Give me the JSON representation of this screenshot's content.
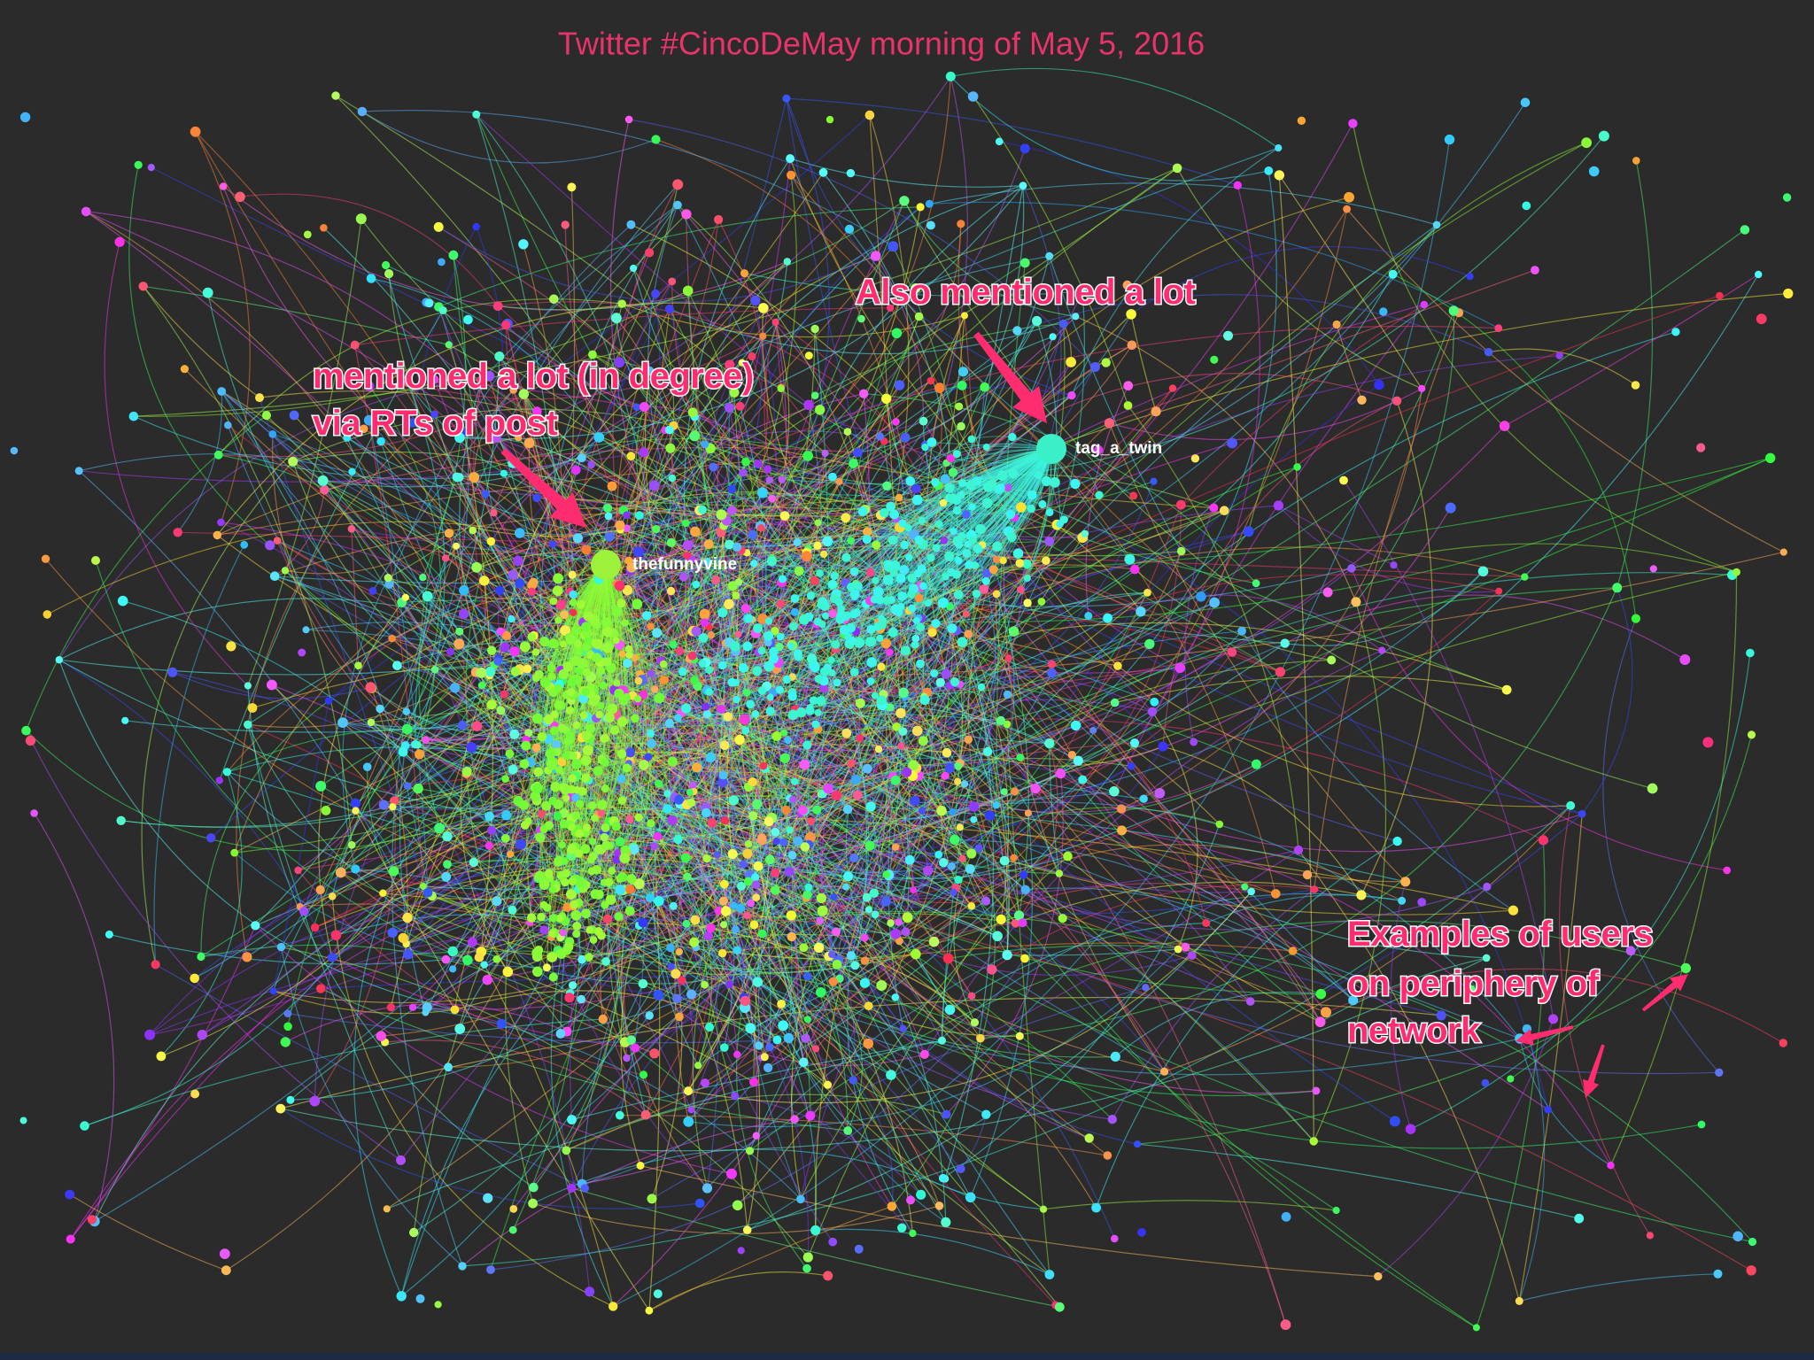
{
  "title": "Twitter #CincoDeMay morning of May 5, 2016",
  "annotations": [
    {
      "lines": [
        "mentioned a lot (in degree)",
        "via RTs of post"
      ]
    },
    {
      "lines": [
        "Also mentioned a lot"
      ]
    },
    {
      "lines": [
        "Examples of users",
        "on periphery of",
        "network"
      ]
    }
  ],
  "hubs": [
    {
      "label": "thefunnyvine"
    },
    {
      "label": "tag_a_twin"
    }
  ]
}
